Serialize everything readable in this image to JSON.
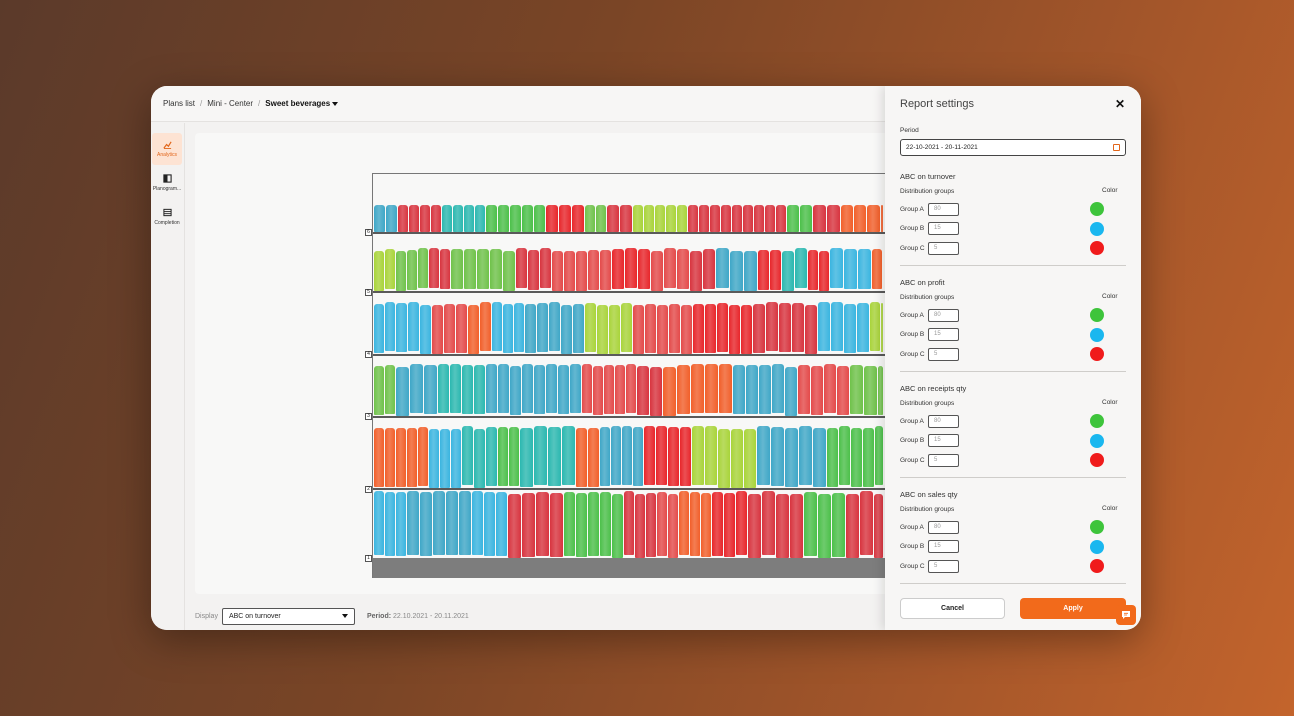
{
  "breadcrumb": {
    "items": [
      "Plans list",
      "Mini - Center"
    ],
    "current": "Sweet beverages",
    "separator": "/"
  },
  "sidebar": {
    "items": [
      {
        "label": "Analytics",
        "icon": "chart-icon",
        "active": true
      },
      {
        "label": "Planogram...",
        "icon": "planogram-icon",
        "active": false
      },
      {
        "label": "Completion",
        "icon": "table-icon",
        "active": false
      }
    ]
  },
  "shelves": {
    "numbers": [
      "1",
      "2",
      "3",
      "4",
      "5",
      "6"
    ]
  },
  "footer": {
    "display_label": "Display",
    "display_value": "ABC on turnover",
    "period_label": "Period:",
    "period_value": "22.10.2021 - 20.11.2021"
  },
  "panel": {
    "title": "Report settings",
    "period_label": "Period",
    "period_value": "22-10-2021 - 20-11-2021",
    "distribution_label": "Distribution groups",
    "color_label": "Color",
    "sections": [
      {
        "title": "ABC on turnover",
        "groups": [
          {
            "name": "Group A",
            "value": "80"
          },
          {
            "name": "Group B",
            "value": "15"
          },
          {
            "name": "Group C",
            "value": "5"
          }
        ]
      },
      {
        "title": "ABC on profit",
        "groups": [
          {
            "name": "Group A",
            "value": "80"
          },
          {
            "name": "Group B",
            "value": "15"
          },
          {
            "name": "Group C",
            "value": "5"
          }
        ]
      },
      {
        "title": "ABC on receipts qty",
        "groups": [
          {
            "name": "Group A",
            "value": "80"
          },
          {
            "name": "Group B",
            "value": "15"
          },
          {
            "name": "Group C",
            "value": "5"
          }
        ]
      },
      {
        "title": "ABC on sales qty",
        "groups": [
          {
            "name": "Group A",
            "value": "80"
          },
          {
            "name": "Group B",
            "value": "15"
          },
          {
            "name": "Group C",
            "value": "5"
          }
        ]
      }
    ],
    "group_colors": [
      "#3ec43b",
      "#1ab7ef",
      "#f01b1b"
    ],
    "cancel_label": "Cancel",
    "apply_label": "Apply",
    "accent": "#f26a1b"
  }
}
